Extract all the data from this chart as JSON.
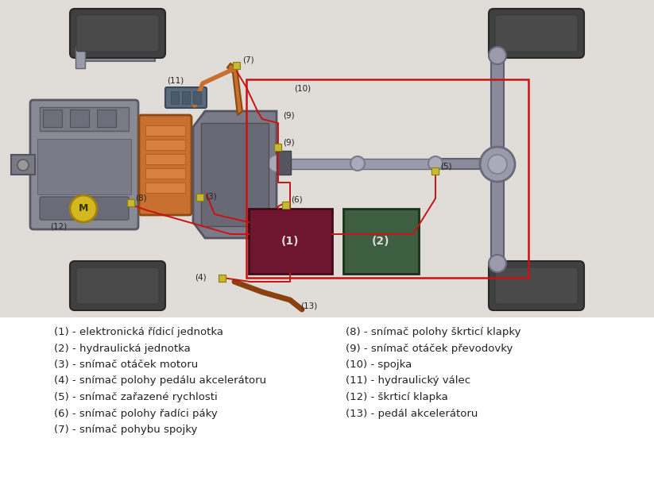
{
  "background_color": "#e8e8e8",
  "diagram_bg": "#e0ddd8",
  "legend_bg": "#ffffff",
  "legend_left": [
    "(1) - elektronická řídicí jednotka",
    "(2) - hydraulická jednotka",
    "(3) - snímač otáček motoru",
    "(4) - snímač polohy pedálu akcelerátoru",
    "(5) - snímač zařazené rychlosti",
    "(6) - snímač polohy řadíci páky",
    "(7) - snímač pohybu spojky"
  ],
  "legend_right": [
    "(8) - snímač polohy škrticí klapky",
    "(9) - snímač otáček převodovky",
    "(10) - spojka",
    "(11) - hydraulický válec",
    "(12) - škrticí klapka",
    "(13) - pedál akcelerátoru"
  ],
  "ecu_color": "#6e1530",
  "hyd_unit_color": "#3d5e40",
  "sensor_color": "#c8b832",
  "wire_color": "#cc1111",
  "red_box_color": "#cc1111",
  "engine_color": "#8a8a95",
  "engine_dark": "#5a5a65",
  "clutch_color": "#c87030",
  "gearbox_color": "#7a7a88",
  "shaft_color": "#9a9aaa",
  "axle_color": "#8a8a9a",
  "tire_color": "#3a3a3a",
  "motor_yellow": "#d4b820",
  "hyd_cyl_color": "#5a6a7a",
  "legend_fontsize": 9.5,
  "dpi": 100,
  "figsize": [
    8.23,
    6.25
  ]
}
